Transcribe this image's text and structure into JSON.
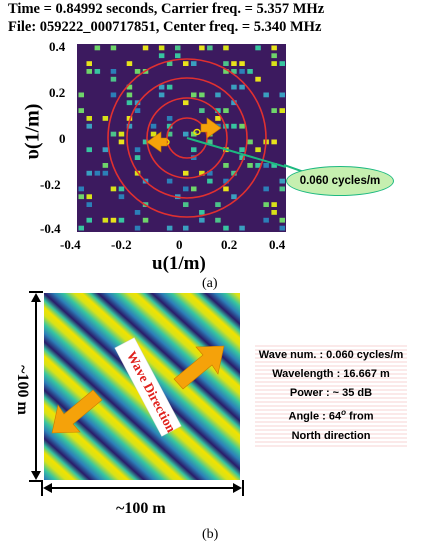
{
  "panel_a": {
    "header_line1": "Time = 0.84992 seconds, Carrier freq. = 5.357 MHz",
    "header_line2": "File: 059222_000717851, Center freq. = 5.340 MHz",
    "ylabel": "υ(1/m)",
    "xlabel": "u(1/m)",
    "y_ticks": [
      "0.4",
      "0.2",
      "0",
      "-0.2",
      "-0.4"
    ],
    "x_ticks": [
      "-0.4",
      "-0.2",
      "0",
      "0.2",
      "0.4"
    ],
    "callout": "0.060 cycles/m",
    "caption": "(a)",
    "colors": {
      "background": "#3c1a5f",
      "rings": "#e03030",
      "arrow": "#f5a20a",
      "callout_fill": "#c6efb0",
      "callout_line": "#1db980"
    }
  },
  "panel_b": {
    "wave_direction_label": "Wave Direction",
    "side_label": "~100 m",
    "bottom_label": "~100 m",
    "info": {
      "wave_num": "Wave num. : 0.060 cycles/m",
      "wavelength": "Wavelength : 16.667 m",
      "power": "Power : ~ 35 dB",
      "angle_prefix": "Angle : 64",
      "angle_sup": "o",
      "angle_suffix": " from",
      "direction": "North direction"
    },
    "caption": "(b)",
    "colors": {
      "stripes": [
        "#2a1b6a",
        "#2c7fb8",
        "#37c5a0",
        "#d8e219",
        "#f2e200"
      ],
      "arrow": "#f5a20a",
      "label": "#e0211c"
    }
  },
  "chart_data": {
    "type": "heatmap",
    "title": "Time = 0.84992 seconds, Carrier freq. = 5.357 MHz / File: 059222_000717851, Center freq. = 5.340 MHz",
    "xlabel": "u(1/m)",
    "ylabel": "υ(1/m)",
    "xlim": [
      -0.4,
      0.4
    ],
    "ylim": [
      -0.4,
      0.4
    ],
    "annotation": "0.060 cycles/m"
  }
}
